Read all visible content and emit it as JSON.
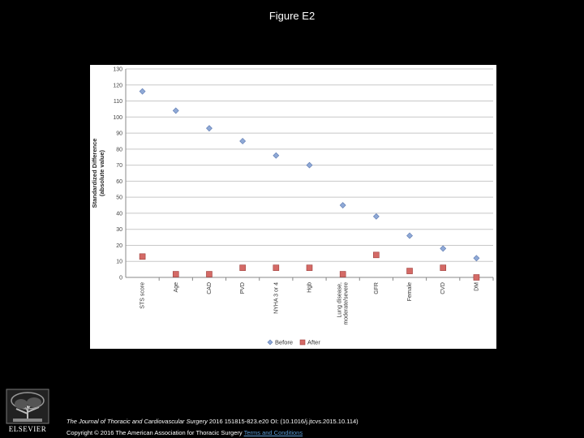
{
  "figure": {
    "title": "Figure E2",
    "citation_journal": "The Journal of Thoracic and Cardiovascular Surgery",
    "citation_rest": " 2016 151815-823.e20 OI: (10.1016/j.jtcvs.2015.10.114)",
    "copyright_text": "Copyright © 2016 The American Association for Thoracic Surgery ",
    "terms_link": "Terms and Conditions",
    "logo_text": "ELSEVIER"
  },
  "colors": {
    "before": "#8fa9d6",
    "before_edge": "#5b78b0",
    "after": "#d46a66",
    "after_edge": "#9e3d3a",
    "grid": "#c8c8c8"
  },
  "chart_data": {
    "type": "scatter",
    "title": "",
    "xlabel": "",
    "ylabel": "Standardized Difference\n(absolute value)",
    "ylim": [
      0,
      130
    ],
    "yticks": [
      0,
      10,
      20,
      30,
      40,
      50,
      60,
      70,
      80,
      90,
      100,
      110,
      120,
      130
    ],
    "grid": true,
    "legend_position": "bottom",
    "categories": [
      "STS score",
      "Age",
      "CAD",
      "PVD",
      "NYHA 3 or 4",
      "Hgb",
      "Lung disease,\nmoderate/severe",
      "GFR",
      "Female",
      "CVD",
      "DM"
    ],
    "series": [
      {
        "name": "Before",
        "marker": "diamond",
        "values": [
          116,
          104,
          93,
          85,
          76,
          70,
          45,
          38,
          26,
          18,
          12
        ]
      },
      {
        "name": "After",
        "marker": "square",
        "values": [
          13,
          2,
          2,
          6,
          6,
          6,
          2,
          14,
          4,
          6,
          0
        ]
      }
    ]
  }
}
